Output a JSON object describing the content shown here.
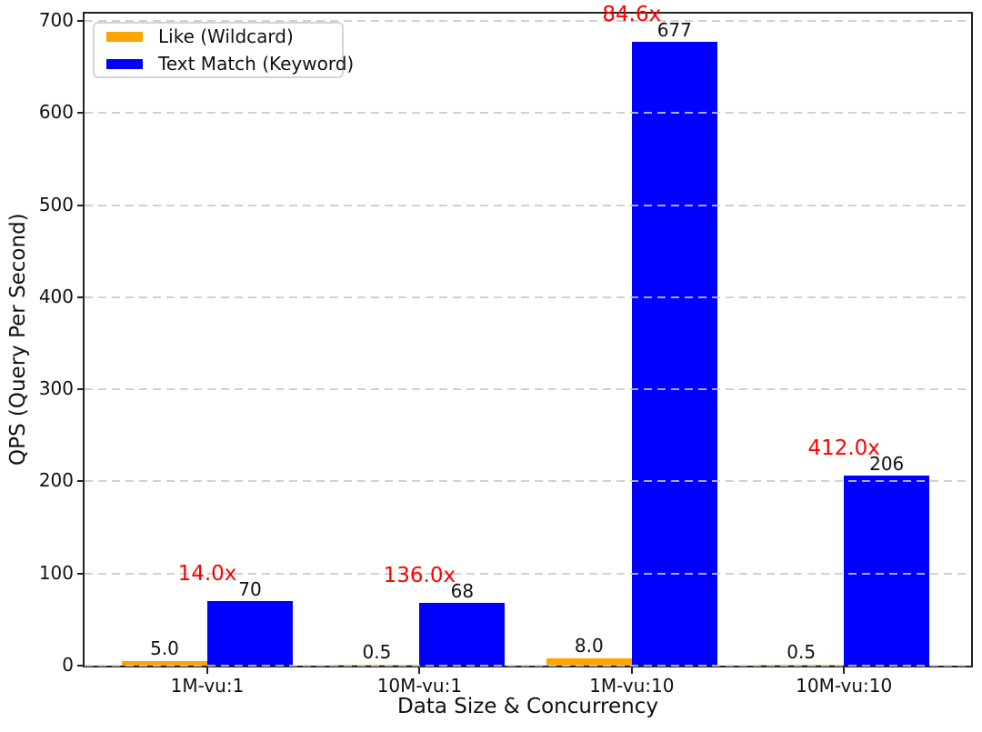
{
  "chart_data": {
    "type": "bar",
    "title": "",
    "xlabel": "Data Size & Concurrency",
    "ylabel": "QPS (Query Per Second)",
    "categories": [
      "1M-vu:1",
      "10M-vu:1",
      "1M-vu:10",
      "10M-vu:10"
    ],
    "series": [
      {
        "name": "Like (Wildcard)",
        "color": "#FFA500",
        "values": [
          5.0,
          0.5,
          8.0,
          0.5
        ],
        "labels": [
          "5.0",
          "0.5",
          "8.0",
          "0.5"
        ]
      },
      {
        "name": "Text Match (Keyword)",
        "color": "#0000FF",
        "values": [
          70,
          68,
          677,
          206
        ],
        "labels": [
          "70",
          "68",
          "677",
          "206"
        ]
      }
    ],
    "ratio_annotations": {
      "color": "#FF0000",
      "labels": [
        "14.0x",
        "136.0x",
        "84.6x",
        "412.0x"
      ]
    },
    "yticks": [
      0,
      100,
      200,
      300,
      400,
      500,
      600,
      700
    ],
    "ylim": [
      0,
      708
    ],
    "grid": {
      "visible": true,
      "style": "dashed",
      "color": "#c9c9c9",
      "axis": "y"
    },
    "legend": {
      "position": "upper-left"
    }
  }
}
